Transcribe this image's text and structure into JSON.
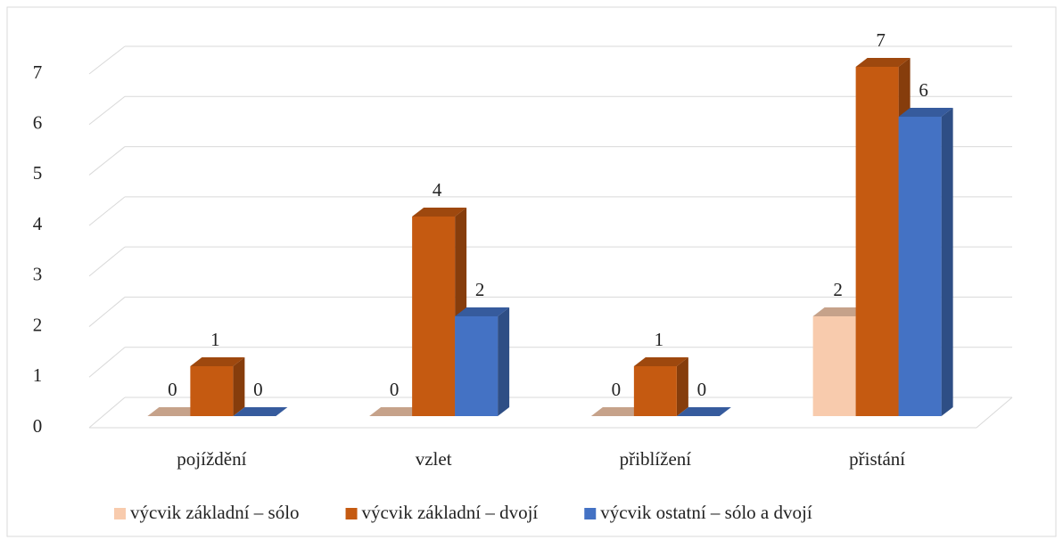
{
  "chart_data": {
    "type": "bar3d",
    "categories": [
      "pojíždění",
      "vzlet",
      "přiblížení",
      "přistání"
    ],
    "series": [
      {
        "name": "výcvik základní – sólo",
        "color": "#f8cbad",
        "values": [
          0,
          0,
          0,
          2
        ]
      },
      {
        "name": "výcvik základní – dvojí",
        "color": "#c55a11",
        "values": [
          1,
          4,
          1,
          7
        ]
      },
      {
        "name": "výcvik ostatní – sólo a dvojí",
        "color": "#4472c4",
        "values": [
          0,
          2,
          0,
          6
        ]
      }
    ],
    "ylim": [
      0,
      7
    ],
    "yticks": [
      0,
      1,
      2,
      3,
      4,
      5,
      6,
      7
    ],
    "grid": true,
    "legend": "bottom"
  }
}
